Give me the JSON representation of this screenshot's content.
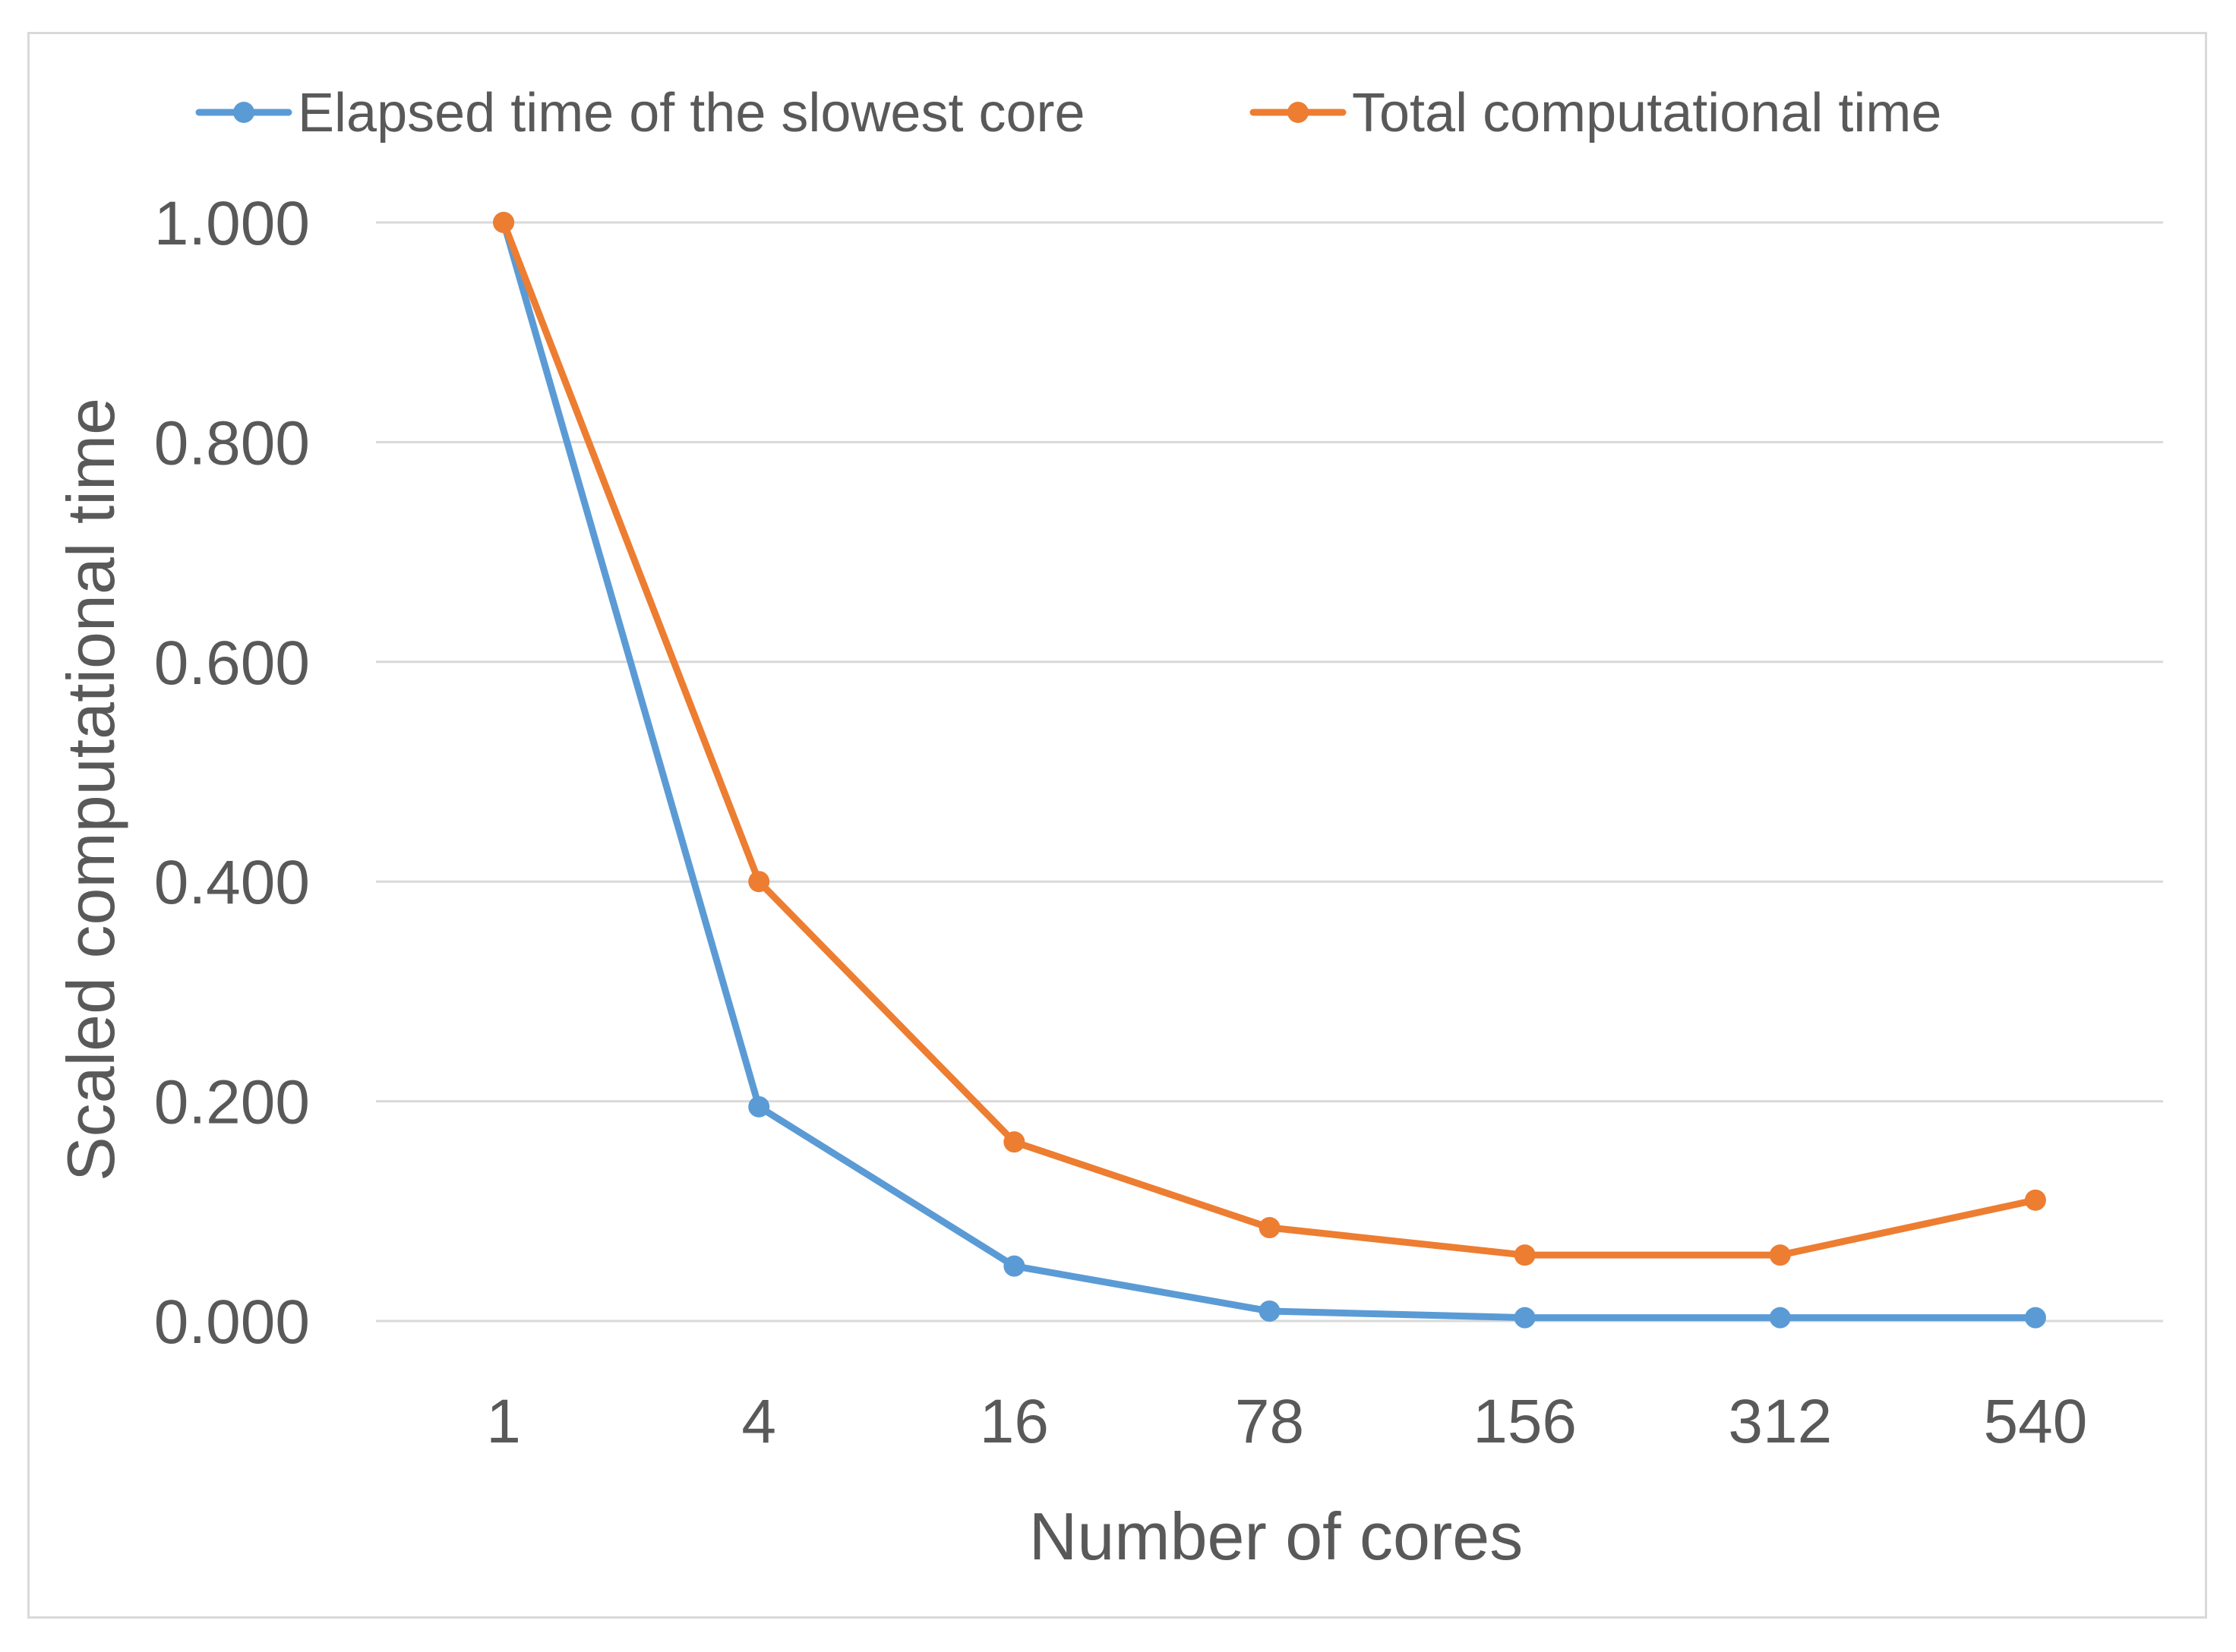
{
  "chart_data": {
    "type": "line",
    "title": "",
    "xlabel": "Number of cores",
    "ylabel": "Scaled computational time",
    "categories": [
      "1",
      "4",
      "16",
      "78",
      "156",
      "312",
      "540"
    ],
    "ylim": [
      0,
      1
    ],
    "yticks": [
      0,
      0.2,
      0.4,
      0.6,
      0.8,
      1.0
    ],
    "ytick_labels": [
      "0.000",
      "0.200",
      "0.400",
      "0.600",
      "0.800",
      "1.000"
    ],
    "grid": true,
    "legend_position": "top",
    "series": [
      {
        "name": "Elapsed time of the slowest core",
        "color": "#5b9bd5",
        "values": [
          1.0,
          0.195,
          0.05,
          0.009,
          0.003,
          0.003,
          0.003
        ]
      },
      {
        "name": "Total computational time",
        "color": "#ed7d31",
        "values": [
          1.0,
          0.4,
          0.163,
          0.085,
          0.06,
          0.06,
          0.11
        ]
      }
    ]
  }
}
